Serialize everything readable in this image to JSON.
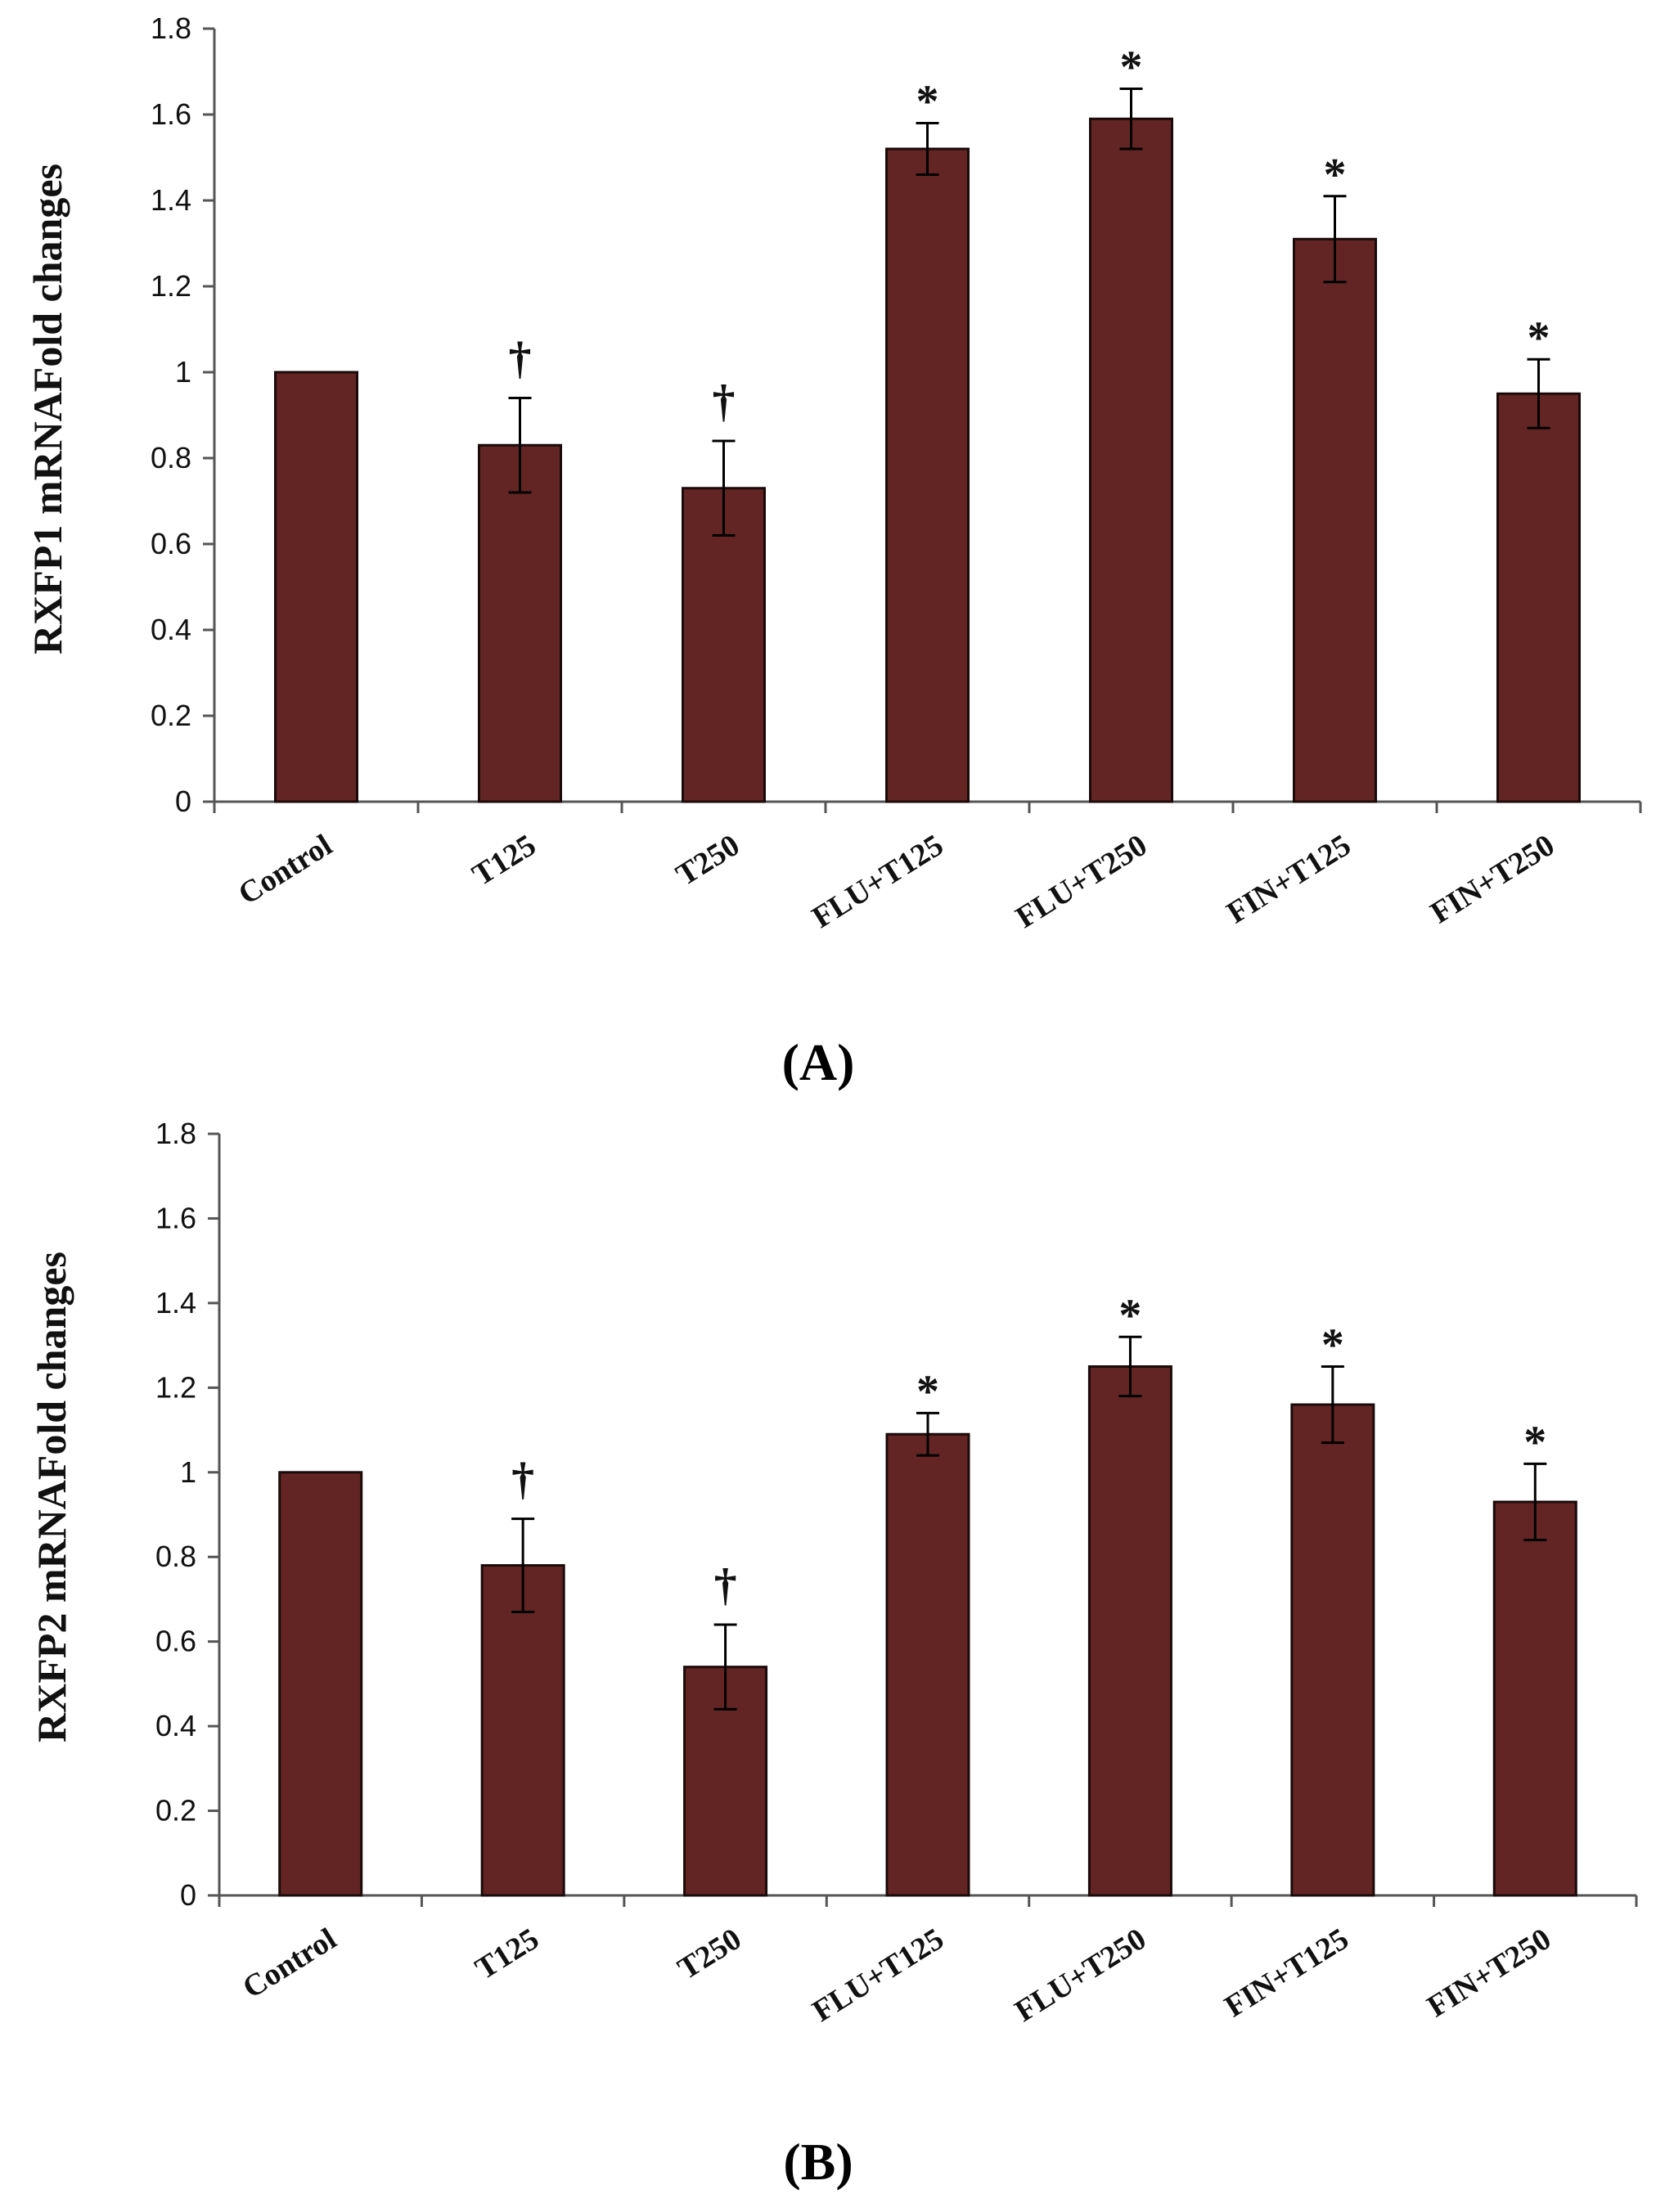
{
  "colors": {
    "bar_fill": "#632524",
    "bar_stroke": "#1a0a0a",
    "axis": "#555555",
    "text": "#111111"
  },
  "chart_data": [
    {
      "type": "bar",
      "panel_label": "(A)",
      "ylabel": "RXFP1 mRNAFold changes",
      "xlabel": "",
      "ylim": [
        0,
        1.8
      ],
      "yticks": [
        "0",
        "0.2",
        "0.4",
        "0.6",
        "0.8",
        "1",
        "1.2",
        "1.4",
        "1.6",
        "1.8"
      ],
      "categories": [
        "Control",
        "T125",
        "T250",
        "FLU+T125",
        "FLU+T250",
        "FIN+T125",
        "FIN+T250"
      ],
      "values": [
        1.0,
        0.83,
        0.73,
        1.52,
        1.59,
        1.31,
        0.95
      ],
      "errors": [
        0,
        0.11,
        0.11,
        0.06,
        0.07,
        0.1,
        0.08
      ],
      "significance": [
        "",
        "†",
        "†",
        "*",
        "*",
        "*",
        "*"
      ]
    },
    {
      "type": "bar",
      "panel_label": "(B)",
      "ylabel": "RXFP2 mRNAFold changes",
      "xlabel": "",
      "ylim": [
        0,
        1.8
      ],
      "yticks": [
        "0",
        "0.2",
        "0.4",
        "0.6",
        "0.8",
        "1",
        "1.2",
        "1.4",
        "1.6",
        "1.8"
      ],
      "categories": [
        "Control",
        "T125",
        "T250",
        "FLU+T125",
        "FLU+T250",
        "FIN+T125",
        "FIN+T250"
      ],
      "values": [
        1.0,
        0.78,
        0.54,
        1.09,
        1.25,
        1.16,
        0.93
      ],
      "errors": [
        0,
        0.11,
        0.1,
        0.05,
        0.07,
        0.09,
        0.09
      ],
      "significance": [
        "",
        "†",
        "†",
        "*",
        "*",
        "*",
        "*"
      ]
    }
  ]
}
